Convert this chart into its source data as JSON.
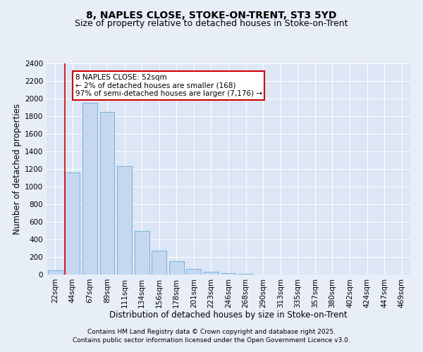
{
  "title1": "8, NAPLES CLOSE, STOKE-ON-TRENT, ST3 5YD",
  "title2": "Size of property relative to detached houses in Stoke-on-Trent",
  "xlabel": "Distribution of detached houses by size in Stoke-on-Trent",
  "ylabel": "Number of detached properties",
  "categories": [
    "22sqm",
    "44sqm",
    "67sqm",
    "89sqm",
    "111sqm",
    "134sqm",
    "156sqm",
    "178sqm",
    "201sqm",
    "223sqm",
    "246sqm",
    "268sqm",
    "290sqm",
    "313sqm",
    "335sqm",
    "357sqm",
    "380sqm",
    "402sqm",
    "424sqm",
    "447sqm",
    "469sqm"
  ],
  "values": [
    50,
    1160,
    1950,
    1850,
    1230,
    500,
    270,
    155,
    65,
    30,
    20,
    5,
    0,
    0,
    0,
    0,
    0,
    0,
    0,
    0,
    0
  ],
  "bar_color": "#c5d8f0",
  "bar_edge_color": "#6aaad4",
  "property_line_x": 0.57,
  "property_line_color": "#cc0000",
  "ylim": [
    0,
    2400
  ],
  "yticks": [
    0,
    200,
    400,
    600,
    800,
    1000,
    1200,
    1400,
    1600,
    1800,
    2000,
    2200,
    2400
  ],
  "annotation_text": "8 NAPLES CLOSE: 52sqm\n← 2% of detached houses are smaller (168)\n97% of semi-detached houses are larger (7,176) →",
  "annotation_box_color": "#cc0000",
  "footer1": "Contains HM Land Registry data © Crown copyright and database right 2025.",
  "footer2": "Contains public sector information licensed under the Open Government Licence v3.0.",
  "background_color": "#e8eef7",
  "plot_bg_color": "#dce6f5",
  "grid_color": "#ffffff",
  "title1_fontsize": 10,
  "title2_fontsize": 9,
  "xlabel_fontsize": 8.5,
  "ylabel_fontsize": 8.5,
  "tick_fontsize": 7.5,
  "footer_fontsize": 6.5,
  "ann_fontsize": 7.5
}
